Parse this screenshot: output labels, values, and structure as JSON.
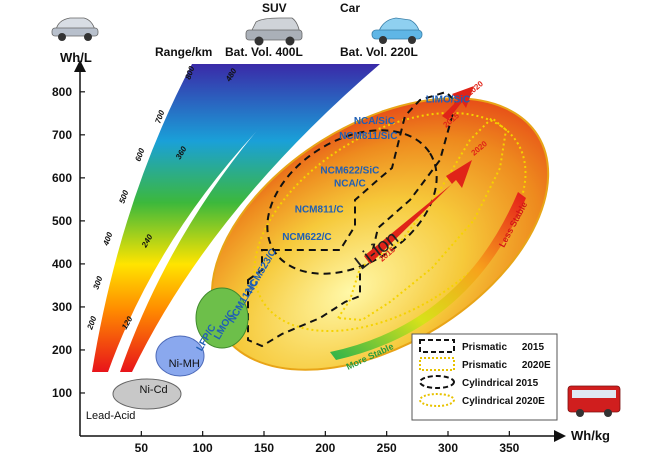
{
  "chart_data": {
    "type": "scatter",
    "title": "",
    "xlabel": "Wh/kg",
    "ylabel": "Wh/L",
    "xlim": [
      0,
      375
    ],
    "ylim": [
      0,
      860
    ],
    "x_ticks": [
      "50",
      "100",
      "150",
      "200",
      "250",
      "300",
      "350"
    ],
    "y_ticks": [
      "100",
      "200",
      "300",
      "400",
      "500",
      "600",
      "700",
      "800"
    ],
    "grid": false,
    "battery_technologies": [
      {
        "name": "Lead-Acid",
        "x": 25,
        "y": 40
      },
      {
        "name": "Ni-Cd",
        "x": 60,
        "y": 100
      },
      {
        "name": "Ni-MH",
        "x": 85,
        "y": 160
      },
      {
        "name": "Li-ion",
        "x": 245,
        "y": 420
      }
    ],
    "li_ion_chemistries": [
      {
        "name": "LFP/C",
        "x": 105,
        "y": 225
      },
      {
        "name": "LMO/C",
        "x": 120,
        "y": 255
      },
      {
        "name": "NCM111/C",
        "x": 135,
        "y": 310
      },
      {
        "name": "NCM523/C",
        "x": 150,
        "y": 380
      },
      {
        "name": "NCM622/C",
        "x": 185,
        "y": 455
      },
      {
        "name": "NCM811/C",
        "x": 195,
        "y": 520
      },
      {
        "name": "NCA/C",
        "x": 220,
        "y": 580
      },
      {
        "name": "NCM622/SiC",
        "x": 220,
        "y": 610
      },
      {
        "name": "NCM811/SiC",
        "x": 235,
        "y": 690
      },
      {
        "name": "NCA/SiC",
        "x": 240,
        "y": 725
      },
      {
        "name": "LIMO/SiC",
        "x": 300,
        "y": 775
      }
    ],
    "range_bands": [
      {
        "name": "Range/km",
        "label": "SUV Bat. Vol. 400L",
        "ticks": [
          "120",
          "240",
          "360",
          "480"
        ]
      },
      {
        "name": "Range/km",
        "label": "Car Bat. Vol. 220L",
        "ticks": [
          "200",
          "300",
          "400",
          "500",
          "600",
          "700",
          "800"
        ]
      }
    ],
    "range_header": "Range/km",
    "band_labels": [
      {
        "title": "SUV",
        "subtitle": "Bat. Vol. 400L"
      },
      {
        "title": "Car",
        "subtitle": "Bat. Vol. 220L"
      }
    ],
    "trend_arrows": [
      {
        "label": "2015",
        "to_label": "2020",
        "from": [
          210,
          420
        ],
        "to": [
          305,
          790
        ]
      },
      {
        "label": "2015",
        "to_label": "2020",
        "from": [
          225,
          580
        ],
        "to": [
          275,
          745
        ]
      }
    ],
    "stability_labels": [
      "More Stable",
      "Less Stable"
    ],
    "legend": {
      "position": "bottom-right",
      "items": [
        {
          "label": "Prismatic",
          "year": "2015",
          "style": "dashed-black"
        },
        {
          "label": "Prismatic",
          "year": "2020E",
          "style": "dotted-yellow"
        },
        {
          "label": "Cylindrical",
          "year": "2015",
          "style": "dashed-ellipse"
        },
        {
          "label": "Cylindrical",
          "year": "2020E",
          "style": "dotted-ellipse"
        }
      ]
    },
    "colors": {
      "li_ion_gradient": [
        "#fff8a8",
        "#f6c93a",
        "#ee8a1e",
        "#e53d16"
      ],
      "nimh": "#6dbf4a",
      "nicd": "#8aa8ee",
      "leadacid": "#c8c8c8",
      "arrow": "#e02418",
      "chem_text": "#1f5fb5"
    }
  }
}
